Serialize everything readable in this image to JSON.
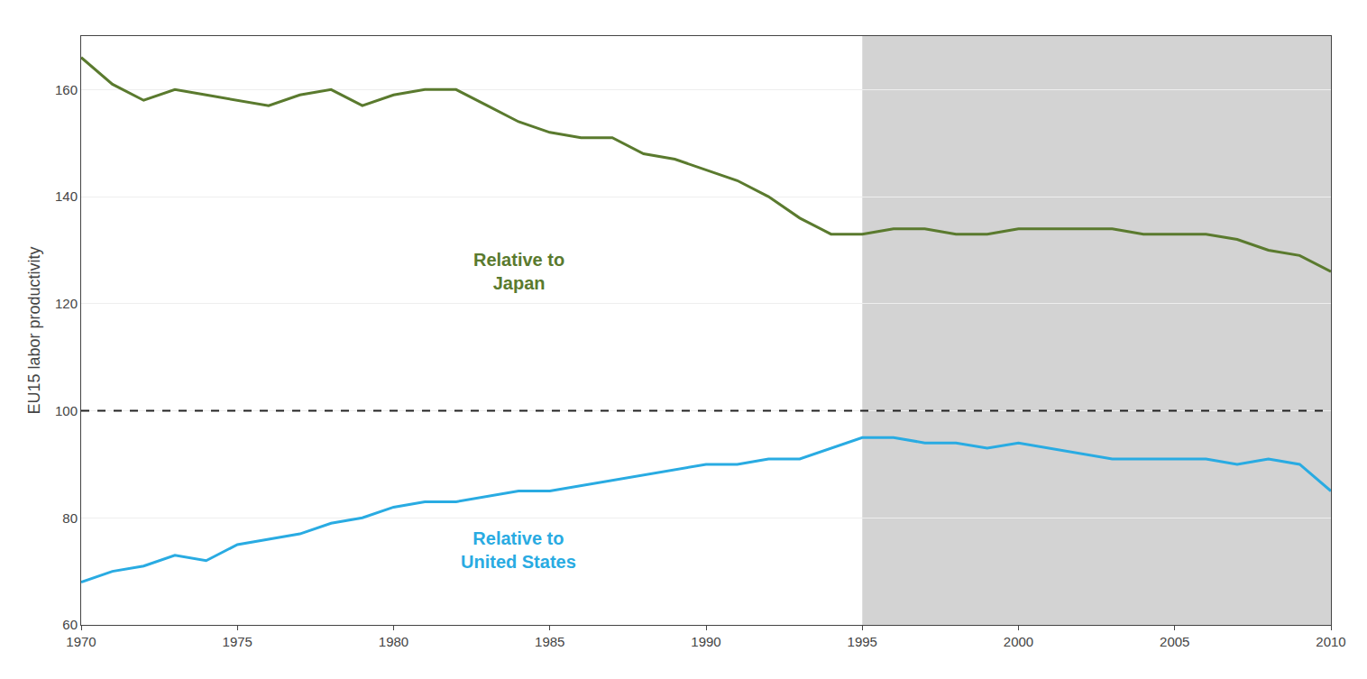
{
  "chart_data": {
    "type": "line",
    "y_label": "EU15 labor productivity",
    "x": [
      1970,
      1971,
      1972,
      1973,
      1974,
      1975,
      1976,
      1977,
      1978,
      1979,
      1980,
      1981,
      1982,
      1983,
      1984,
      1985,
      1986,
      1987,
      1988,
      1989,
      1990,
      1991,
      1992,
      1993,
      1994,
      1995,
      1996,
      1997,
      1998,
      1999,
      2000,
      2001,
      2002,
      2003,
      2004,
      2005,
      2006,
      2007,
      2008,
      2009,
      2010
    ],
    "series": [
      {
        "color": "#5a7a2e",
        "values": [
          166,
          161,
          158,
          160,
          159,
          158,
          157,
          159,
          160,
          157,
          159,
          160,
          160,
          157,
          154,
          152,
          151,
          151,
          148,
          147,
          145,
          143,
          140,
          136,
          133,
          133,
          134,
          134,
          133,
          133,
          134,
          134,
          134,
          134,
          133,
          133,
          133,
          132,
          130,
          129,
          126
        ]
      },
      {
        "color": "#29abe2",
        "values": [
          68,
          70,
          71,
          73,
          72,
          75,
          76,
          77,
          79,
          80,
          82,
          83,
          83,
          84,
          85,
          85,
          86,
          87,
          88,
          89,
          90,
          90,
          91,
          91,
          93,
          95,
          95,
          94,
          94,
          93,
          94,
          93,
          92,
          91,
          91,
          91,
          91,
          90,
          91,
          90,
          85
        ]
      }
    ],
    "annotations": [
      {
        "text": "Relative to\nJapan",
        "x": 1984,
        "y": 126,
        "color": "#5a7a2e"
      },
      {
        "text": "Relative to\nUnited States",
        "x": 1984,
        "y": 74,
        "color": "#29abe2"
      }
    ],
    "shaded_region": {
      "x0": 1995,
      "x1": 2010,
      "color": "#d3d3d3"
    },
    "reference_line": {
      "y": 100,
      "color": "#222222",
      "line_style": "dashed"
    },
    "xlim": [
      1970,
      2010
    ],
    "ylim": [
      60,
      170
    ],
    "xticks": [
      1970,
      1975,
      1980,
      1985,
      1990,
      1995,
      2000,
      2005,
      2010
    ],
    "yticks": [
      60,
      80,
      100,
      120,
      140,
      160
    ],
    "grid": "y"
  }
}
